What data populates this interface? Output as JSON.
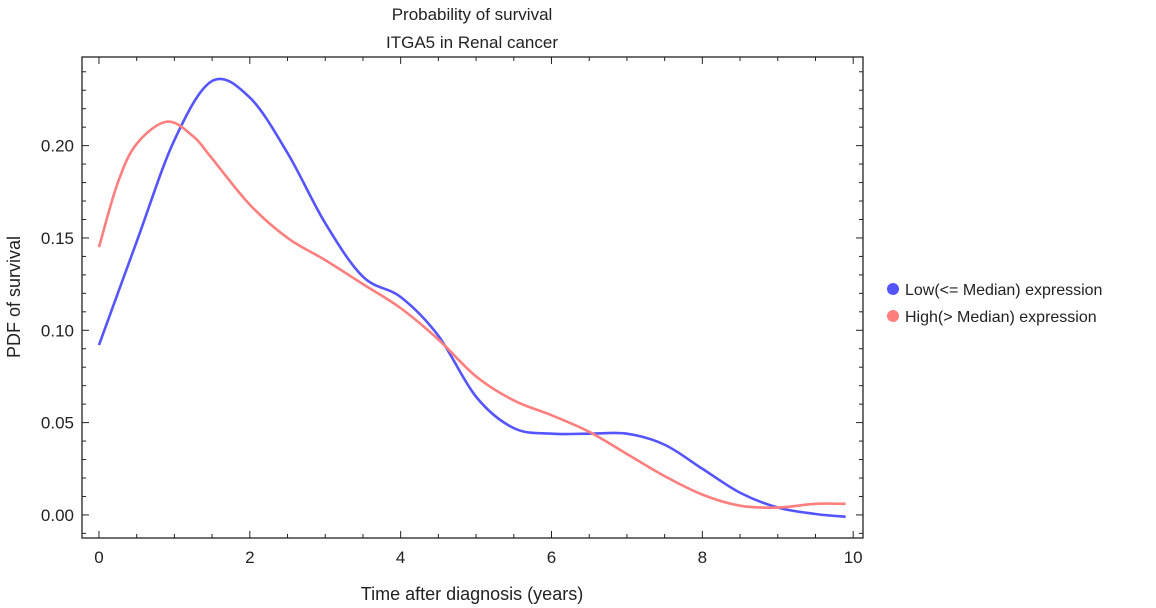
{
  "chart_data": {
    "type": "line",
    "title": "Probability of survival",
    "subtitle": "ITGA5 in Renal cancer",
    "xlabel": "Time after diagnosis (years)",
    "ylabel": "PDF of survival",
    "xlim": [
      -0.225,
      10.13
    ],
    "ylim": [
      -0.0125,
      0.248
    ],
    "xticks": [
      0,
      2,
      4,
      6,
      8,
      10
    ],
    "xtick_labels": [
      "0",
      "2",
      "4",
      "6",
      "8",
      "10"
    ],
    "yticks": [
      0,
      0.05,
      0.1,
      0.15,
      0.2
    ],
    "ytick_labels": [
      "0.00",
      "0.05",
      "0.10",
      "0.15",
      "0.20"
    ],
    "grid": false,
    "legend_position": "right",
    "series": [
      {
        "name": "Low(<= Median) expression",
        "color": "#5555ff",
        "x": [
          0,
          0.5,
          1,
          1.5,
          2,
          2.5,
          3,
          3.5,
          4,
          4.5,
          5,
          5.5,
          6,
          6.5,
          7,
          7.5,
          8,
          8.5,
          9,
          9.5,
          9.9
        ],
        "y": [
          0.092,
          0.148,
          0.203,
          0.235,
          0.226,
          0.196,
          0.158,
          0.129,
          0.118,
          0.097,
          0.064,
          0.047,
          0.044,
          0.044,
          0.044,
          0.038,
          0.025,
          0.012,
          0.004,
          0.0005,
          -0.001
        ]
      },
      {
        "name": "High(> Median) expression",
        "color": "#ff7f7f",
        "x": [
          0,
          0.25,
          0.5,
          0.9,
          1.25,
          1.5,
          2,
          2.5,
          3,
          3.5,
          4,
          4.5,
          5,
          5.5,
          6,
          6.5,
          7,
          7.5,
          8,
          8.5,
          9,
          9.5,
          9.9
        ],
        "y": [
          0.145,
          0.18,
          0.201,
          0.213,
          0.205,
          0.193,
          0.168,
          0.15,
          0.138,
          0.125,
          0.112,
          0.095,
          0.075,
          0.062,
          0.054,
          0.045,
          0.033,
          0.021,
          0.011,
          0.005,
          0.004,
          0.006,
          0.006
        ]
      }
    ]
  }
}
